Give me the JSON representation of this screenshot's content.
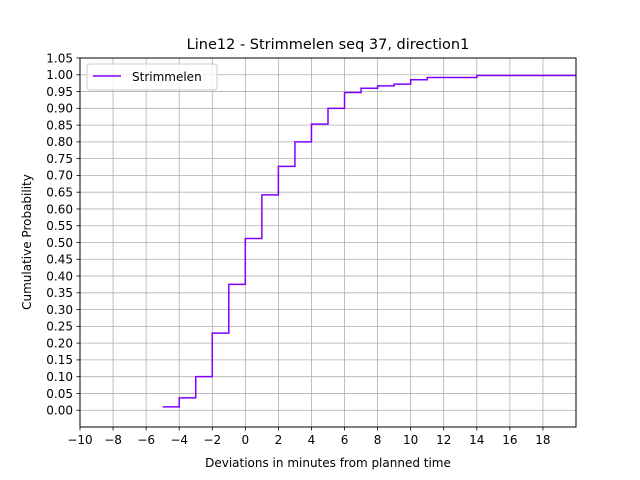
{
  "chart_data": {
    "type": "line",
    "title": "Line12 - Strimmelen seq 37, direction1",
    "xlabel": "Deviations in minutes from planned time",
    "ylabel": "Cumulative Probability",
    "xlim": [
      -10,
      20
    ],
    "ylim": [
      -0.05,
      1.05
    ],
    "xticks": [
      -10,
      -8,
      -6,
      -4,
      -2,
      0,
      2,
      4,
      6,
      8,
      10,
      12,
      14,
      16,
      18
    ],
    "yticks": [
      0.0,
      0.05,
      0.1,
      0.15,
      0.2,
      0.25,
      0.3,
      0.35,
      0.4,
      0.45,
      0.5,
      0.55,
      0.6,
      0.65,
      0.7,
      0.75,
      0.8,
      0.85,
      0.9,
      0.95,
      1.0,
      1.05
    ],
    "grid": true,
    "legend_position": "top-left",
    "step": "post",
    "series": [
      {
        "name": "Strimmelen",
        "color": "#7f00ff",
        "x": [
          -5,
          -4,
          -3,
          -2,
          -1,
          0,
          1,
          2,
          3,
          4,
          5,
          6,
          7,
          8,
          9,
          10,
          11,
          12,
          13,
          14,
          20
        ],
        "y": [
          0.01,
          0.037,
          0.1,
          0.23,
          0.375,
          0.512,
          0.642,
          0.727,
          0.8,
          0.853,
          0.9,
          0.947,
          0.96,
          0.967,
          0.972,
          0.985,
          0.992,
          0.992,
          0.992,
          0.998,
          0.998
        ]
      }
    ]
  }
}
